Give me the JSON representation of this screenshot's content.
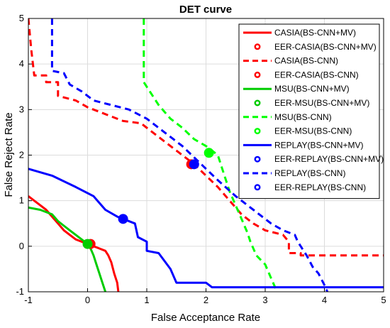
{
  "chart_data": {
    "type": "line",
    "title": "DET curve",
    "xlabel": "False Acceptance Rate",
    "ylabel": "False Reject Rate",
    "xlim": [
      -1,
      5
    ],
    "ylim": [
      -1,
      5
    ],
    "xticks": [
      "-1",
      "0",
      "1",
      "2",
      "3",
      "4",
      "5"
    ],
    "yticks": [
      "-1",
      "0",
      "1",
      "2",
      "3",
      "4",
      "5"
    ],
    "grid": true,
    "legend_position": "top-right",
    "legend": [
      "CASIA(BS-CNN+MV)",
      "EER-CASIA(BS-CNN+MV)",
      "CASIA(BS-CNN)",
      "EER-CASIA(BS-CNN)",
      "MSU(BS-CNN+MV)",
      "EER-MSU(BS-CNN+MV)",
      "MSU(BS-CNN)",
      "EER-MSU(BS-CNN)",
      "REPLAY(BS-CNN+MV)",
      "EER-REPLAY(BS-CNN+MV)",
      "REPLAY(BS-CNN)",
      "EER-REPLAY(BS-CNN)"
    ],
    "series": [
      {
        "name": "CASIA(BS-CNN+MV)",
        "color": "#ff0000",
        "style": "solid",
        "points": [
          [
            -1,
            1.1
          ],
          [
            -0.9,
            1.0
          ],
          [
            -0.8,
            0.9
          ],
          [
            -0.7,
            0.8
          ],
          [
            -0.6,
            0.65
          ],
          [
            -0.5,
            0.5
          ],
          [
            -0.4,
            0.35
          ],
          [
            -0.3,
            0.25
          ],
          [
            -0.2,
            0.15
          ],
          [
            -0.1,
            0.1
          ],
          [
            0,
            0.05
          ],
          [
            0.1,
            0
          ],
          [
            0.2,
            -0.05
          ],
          [
            0.3,
            -0.1
          ],
          [
            0.35,
            -0.2
          ],
          [
            0.4,
            -0.35
          ],
          [
            0.45,
            -0.6
          ],
          [
            0.5,
            -0.8
          ],
          [
            0.52,
            -1
          ]
        ]
      },
      {
        "name": "EER-CASIA(BS-CNN+MV)",
        "color": "#ff0000",
        "marker": true,
        "points": [
          [
            0.05,
            0.05
          ]
        ]
      },
      {
        "name": "CASIA(BS-CNN)",
        "color": "#ff0000",
        "style": "dashed",
        "points": [
          [
            -1,
            5
          ],
          [
            -0.95,
            4.3
          ],
          [
            -0.9,
            3.75
          ],
          [
            -0.7,
            3.75
          ],
          [
            -0.7,
            3.6
          ],
          [
            -0.5,
            3.6
          ],
          [
            -0.5,
            3.3
          ],
          [
            -0.2,
            3.2
          ],
          [
            0,
            3.05
          ],
          [
            0.2,
            2.95
          ],
          [
            0.4,
            2.85
          ],
          [
            0.6,
            2.75
          ],
          [
            0.9,
            2.7
          ],
          [
            1,
            2.6
          ],
          [
            1.3,
            2.3
          ],
          [
            1.6,
            2.0
          ],
          [
            1.8,
            1.8
          ],
          [
            2.0,
            1.55
          ],
          [
            2.2,
            1.3
          ],
          [
            2.4,
            1.0
          ],
          [
            2.6,
            0.7
          ],
          [
            2.8,
            0.5
          ],
          [
            3.0,
            0.35
          ],
          [
            3.3,
            0.25
          ],
          [
            3.4,
            0.1
          ],
          [
            3.4,
            -0.15
          ],
          [
            3.6,
            -0.15
          ],
          [
            3.6,
            -0.2
          ],
          [
            5,
            -0.2
          ]
        ]
      },
      {
        "name": "EER-CASIA(BS-CNN)",
        "color": "#ff0000",
        "marker": true,
        "points": [
          [
            1.75,
            1.8
          ]
        ]
      },
      {
        "name": "MSU(BS-CNN+MV)",
        "color": "#00cc00",
        "style": "solid",
        "points": [
          [
            -1,
            0.85
          ],
          [
            -0.8,
            0.8
          ],
          [
            -0.6,
            0.7
          ],
          [
            -0.5,
            0.55
          ],
          [
            -0.4,
            0.45
          ],
          [
            -0.3,
            0.35
          ],
          [
            -0.2,
            0.25
          ],
          [
            -0.1,
            0.15
          ],
          [
            0,
            0.05
          ],
          [
            0.05,
            -0.05
          ],
          [
            0.1,
            -0.2
          ],
          [
            0.15,
            -0.4
          ],
          [
            0.2,
            -0.6
          ],
          [
            0.25,
            -0.8
          ],
          [
            0.3,
            -1
          ]
        ]
      },
      {
        "name": "EER-MSU(BS-CNN+MV)",
        "color": "#00cc00",
        "marker": true,
        "points": [
          [
            0.0,
            0.05
          ]
        ]
      },
      {
        "name": "MSU(BS-CNN)",
        "color": "#00ff00",
        "style": "dashed",
        "points": [
          [
            0.95,
            5
          ],
          [
            0.95,
            3.6
          ],
          [
            1.05,
            3.4
          ],
          [
            1.2,
            3.1
          ],
          [
            1.4,
            2.8
          ],
          [
            1.6,
            2.6
          ],
          [
            1.8,
            2.35
          ],
          [
            2.0,
            2.2
          ],
          [
            2.2,
            2.0
          ],
          [
            2.3,
            1.6
          ],
          [
            2.4,
            1.2
          ],
          [
            2.5,
            0.9
          ],
          [
            2.6,
            0.6
          ],
          [
            2.7,
            0.3
          ],
          [
            2.75,
            0.1
          ],
          [
            2.85,
            -0.2
          ],
          [
            3.0,
            -0.4
          ],
          [
            3.1,
            -0.7
          ],
          [
            3.2,
            -1
          ]
        ]
      },
      {
        "name": "EER-MSU(BS-CNN)",
        "color": "#00ff00",
        "marker": true,
        "points": [
          [
            2.05,
            2.05
          ]
        ]
      },
      {
        "name": "REPLAY(BS-CNN+MV)",
        "color": "#0000ff",
        "style": "solid",
        "points": [
          [
            -1,
            1.7
          ],
          [
            -0.6,
            1.55
          ],
          [
            -0.2,
            1.3
          ],
          [
            0.1,
            1.1
          ],
          [
            0.2,
            0.95
          ],
          [
            0.3,
            0.8
          ],
          [
            0.5,
            0.65
          ],
          [
            0.6,
            0.6
          ],
          [
            0.8,
            0.5
          ],
          [
            0.85,
            0.2
          ],
          [
            1.0,
            0.1
          ],
          [
            1.0,
            -0.1
          ],
          [
            1.2,
            -0.15
          ],
          [
            1.4,
            -0.5
          ],
          [
            1.5,
            -0.8
          ],
          [
            2.0,
            -0.8
          ],
          [
            2.1,
            -0.9
          ],
          [
            5,
            -0.9
          ]
        ]
      },
      {
        "name": "EER-REPLAY(BS-CNN+MV)",
        "color": "#0000ff",
        "marker": true,
        "points": [
          [
            0.6,
            0.6
          ]
        ]
      },
      {
        "name": "REPLAY(BS-CNN)",
        "color": "#0000ff",
        "style": "dashed",
        "points": [
          [
            -0.6,
            5
          ],
          [
            -0.6,
            3.85
          ],
          [
            -0.4,
            3.8
          ],
          [
            -0.3,
            3.55
          ],
          [
            -0.1,
            3.4
          ],
          [
            0.1,
            3.2
          ],
          [
            0.4,
            3.1
          ],
          [
            0.7,
            3.0
          ],
          [
            1.0,
            2.8
          ],
          [
            1.3,
            2.5
          ],
          [
            1.6,
            2.2
          ],
          [
            1.8,
            1.95
          ],
          [
            2.0,
            1.7
          ],
          [
            2.2,
            1.45
          ],
          [
            2.5,
            1.1
          ],
          [
            2.8,
            0.8
          ],
          [
            3.1,
            0.5
          ],
          [
            3.3,
            0.35
          ],
          [
            3.5,
            0.25
          ],
          [
            3.55,
            0.1
          ],
          [
            3.7,
            -0.2
          ],
          [
            3.8,
            -0.45
          ],
          [
            3.9,
            -0.6
          ],
          [
            4.0,
            -0.85
          ],
          [
            4.05,
            -1
          ]
        ]
      },
      {
        "name": "EER-REPLAY(BS-CNN)",
        "color": "#0000ff",
        "marker": true,
        "points": [
          [
            1.8,
            1.8
          ]
        ]
      }
    ]
  }
}
